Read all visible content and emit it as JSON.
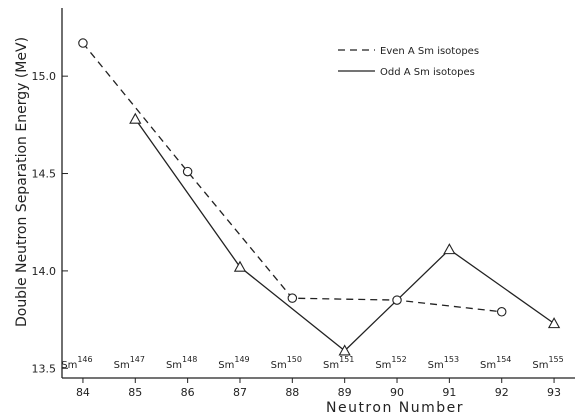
{
  "chart_data": {
    "type": "line",
    "title": "",
    "xlabel": "Neutron Number",
    "ylabel": "Double Neutron Separation Energy (MeV)",
    "xlim": [
      83.6,
      93.4
    ],
    "ylim": [
      13.45,
      15.35
    ],
    "x_ticks": [
      84,
      85,
      86,
      87,
      88,
      89,
      90,
      91,
      92,
      93
    ],
    "x_tick_labels": [
      "84",
      "85",
      "86",
      "87",
      "88",
      "89",
      "90",
      "91",
      "92",
      "93"
    ],
    "y_ticks": [
      13.5,
      14.0,
      14.5,
      15.0
    ],
    "y_tick_labels": [
      "13.5",
      "14.0",
      "14.5",
      "15.0"
    ],
    "grid": false,
    "legend_position": "top-right",
    "series": [
      {
        "name": "Even A Sm isotopes",
        "line_style": "dashed",
        "x": [
          84,
          86,
          88,
          90,
          92
        ],
        "values": [
          15.17,
          14.51,
          13.86,
          13.85,
          13.79
        ]
      },
      {
        "name": "Odd A Sm isotopes",
        "line_style": "solid",
        "x": [
          85,
          87,
          89,
          91,
          93
        ],
        "values": [
          14.78,
          14.02,
          13.59,
          14.11,
          13.73
        ]
      }
    ],
    "point_markers": [
      {
        "x": 84,
        "value": 15.17,
        "shape": "circle"
      },
      {
        "x": 85,
        "value": 14.78,
        "shape": "triangle"
      },
      {
        "x": 86,
        "value": 14.51,
        "shape": "circle"
      },
      {
        "x": 87,
        "value": 14.02,
        "shape": "triangle"
      },
      {
        "x": 88,
        "value": 13.86,
        "shape": "circle"
      },
      {
        "x": 89,
        "value": 13.59,
        "shape": "triangle"
      },
      {
        "x": 90,
        "value": 13.85,
        "shape": "circle"
      },
      {
        "x": 91,
        "value": 14.11,
        "shape": "triangle"
      },
      {
        "x": 92,
        "value": 13.79,
        "shape": "circle"
      },
      {
        "x": 93,
        "value": 13.73,
        "shape": "triangle"
      }
    ],
    "isotope_labels": [
      {
        "x": 84,
        "element": "Sm",
        "mass": "146"
      },
      {
        "x": 85,
        "element": "Sm",
        "mass": "147"
      },
      {
        "x": 86,
        "element": "Sm",
        "mass": "148"
      },
      {
        "x": 87,
        "element": "Sm",
        "mass": "149"
      },
      {
        "x": 88,
        "element": "Sm",
        "mass": "150"
      },
      {
        "x": 89,
        "element": "Sm",
        "mass": "151"
      },
      {
        "x": 90,
        "element": "Sm",
        "mass": "152"
      },
      {
        "x": 91,
        "element": "Sm",
        "mass": "153"
      },
      {
        "x": 92,
        "element": "Sm",
        "mass": "154"
      },
      {
        "x": 93,
        "element": "Sm",
        "mass": "155"
      }
    ]
  }
}
